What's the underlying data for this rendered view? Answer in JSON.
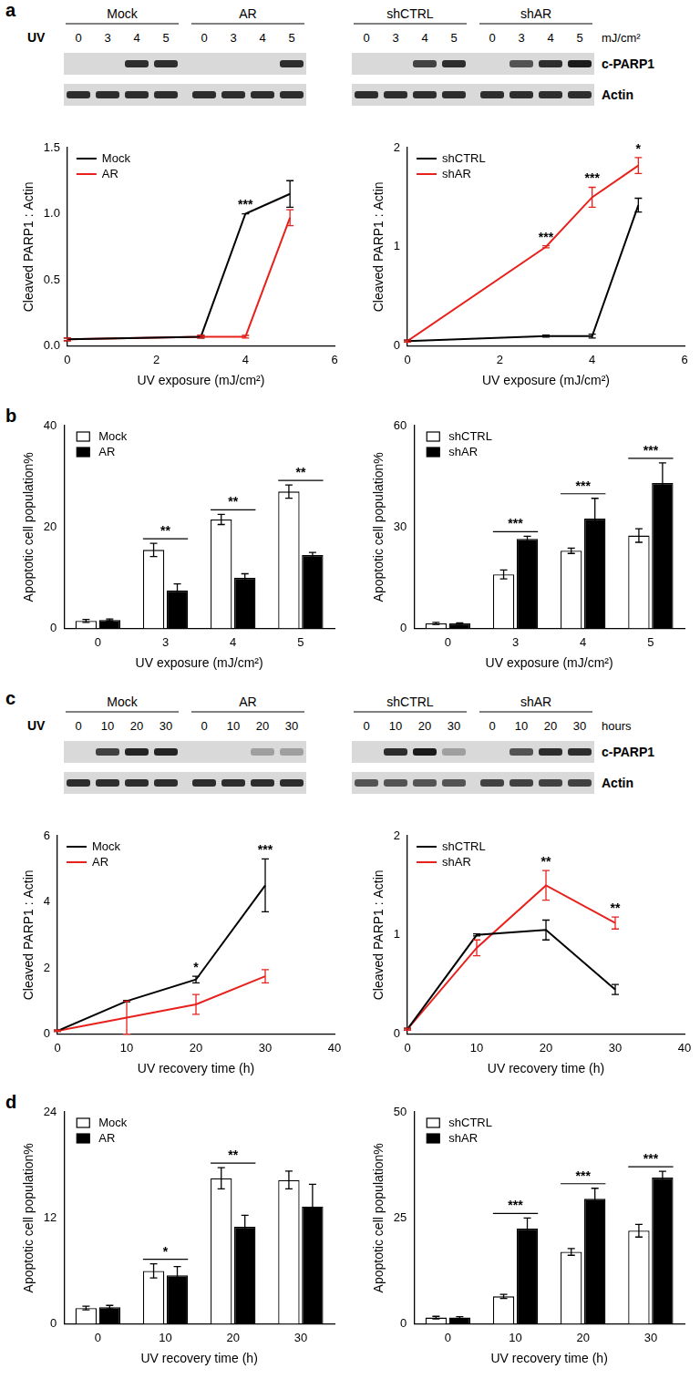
{
  "blots": [
    {
      "panel": "a",
      "row_label": "UV",
      "unit": "mJ/cm²",
      "groups": [
        {
          "name": "Mock",
          "lanes": [
            0,
            3,
            4,
            5
          ]
        },
        {
          "name": "AR",
          "lanes": [
            0,
            3,
            4,
            5
          ]
        },
        {
          "name": "shCTRL",
          "lanes": [
            0,
            3,
            4,
            5
          ]
        },
        {
          "name": "shAR",
          "lanes": [
            0,
            3,
            4,
            5
          ]
        }
      ],
      "rows": [
        {
          "name": "c-PARP1",
          "bands": [
            [
              0,
              0,
              0.9,
              0.9
            ],
            [
              0,
              0,
              0,
              0.9
            ],
            [
              0,
              0,
              0.8,
              0.9
            ],
            [
              0,
              0.7,
              0.9,
              1
            ]
          ]
        },
        {
          "name": "Actin",
          "bands": [
            [
              0.9,
              0.9,
              0.9,
              0.9
            ],
            [
              0.9,
              0.9,
              0.9,
              0.9
            ],
            [
              0.9,
              0.9,
              0.9,
              0.9
            ],
            [
              0.9,
              0.9,
              0.9,
              0.9
            ]
          ]
        }
      ]
    },
    {
      "panel": "c",
      "row_label": "UV",
      "unit": "hours",
      "groups": [
        {
          "name": "Mock",
          "lanes": [
            0,
            10,
            20,
            30
          ]
        },
        {
          "name": "AR",
          "lanes": [
            0,
            10,
            20,
            30
          ]
        },
        {
          "name": "shCTRL",
          "lanes": [
            0,
            10,
            20,
            30
          ]
        },
        {
          "name": "shAR",
          "lanes": [
            0,
            10,
            20,
            30
          ]
        }
      ],
      "rows": [
        {
          "name": "c-PARP1",
          "bands": [
            [
              0,
              0.8,
              0.95,
              0.95
            ],
            [
              0,
              0,
              0.3,
              0.3
            ],
            [
              0,
              0.9,
              1,
              0.3
            ],
            [
              0,
              0.7,
              0.9,
              0.9
            ]
          ]
        },
        {
          "name": "Actin",
          "bands": [
            [
              0.9,
              0.9,
              0.9,
              0.9
            ],
            [
              0.9,
              0.9,
              0.9,
              0.9
            ],
            [
              0.7,
              0.7,
              0.7,
              0.7
            ],
            [
              0.8,
              0.8,
              0.8,
              0.8
            ]
          ]
        }
      ]
    }
  ],
  "chart_data": [
    {
      "panel": "a",
      "type": "line",
      "x_label": "UV exposure (mJ/cm²)",
      "y_label": "Cleaved PARP1 : Actin",
      "x": [
        0,
        3,
        4,
        5
      ],
      "xlim": [
        0,
        6
      ],
      "xticks": [
        0,
        2,
        4,
        6
      ],
      "ylim": [
        0,
        1.5
      ],
      "yticks": [
        {
          "value": 0,
          "label": "0.0"
        },
        0.5,
        {
          "value": 1,
          "label": "1.0"
        },
        1.5
      ],
      "legend": "upper left",
      "series": [
        {
          "name": "Mock",
          "color": "#000000",
          "values": [
            0.05,
            0.07,
            1.0,
            1.15
          ],
          "errors": [
            0.01,
            0.01,
            0.0,
            0.1
          ]
        },
        {
          "name": "AR",
          "color": "#e8211c",
          "values": [
            0.05,
            0.07,
            0.07,
            0.97
          ],
          "errors": [
            0.01,
            0.01,
            0.01,
            0.06
          ]
        }
      ],
      "significance": [
        {
          "x": 4,
          "text": "***"
        }
      ]
    },
    {
      "panel": "a",
      "type": "line",
      "x_label": "UV exposure (mJ/cm²)",
      "y_label": "Cleaved PARP1 : Actin",
      "x": [
        0,
        3,
        4,
        5
      ],
      "xlim": [
        0,
        6
      ],
      "xticks": [
        0,
        2,
        4,
        6
      ],
      "ylim": [
        0,
        2
      ],
      "yticks": [
        0,
        1,
        2
      ],
      "legend": "upper left",
      "series": [
        {
          "name": "shCTRL",
          "color": "#000000",
          "values": [
            0.05,
            0.1,
            0.1,
            1.42
          ],
          "errors": [
            0.01,
            0.01,
            0.02,
            0.07
          ]
        },
        {
          "name": "shAR",
          "color": "#e8211c",
          "values": [
            0.05,
            1.0,
            1.5,
            1.82
          ],
          "errors": [
            0.01,
            0.01,
            0.1,
            0.08
          ]
        }
      ],
      "significance": [
        {
          "x": 3,
          "text": "***"
        },
        {
          "x": 4,
          "text": "***"
        },
        {
          "x": 5,
          "text": "*"
        }
      ]
    },
    {
      "panel": "b",
      "type": "bar",
      "x_label": "UV exposure (mJ/cm²)",
      "y_label": "Apoptotic cell population%",
      "categories": [
        "0",
        "3",
        "4",
        "5"
      ],
      "ylim": [
        0,
        40
      ],
      "yticks": [
        0,
        20,
        40
      ],
      "legend": "upper left",
      "series": [
        {
          "name": "Mock",
          "color": "#ffffff",
          "values": [
            1.5,
            15.5,
            21.5,
            27
          ],
          "errors": [
            0.3,
            1.3,
            1.0,
            1.3
          ]
        },
        {
          "name": "AR",
          "color": "#000000",
          "values": [
            1.7,
            7.5,
            10,
            14.5
          ],
          "errors": [
            0.2,
            1.3,
            0.8,
            0.5
          ]
        }
      ],
      "significance": [
        {
          "x": "3",
          "text": "**"
        },
        {
          "x": "4",
          "text": "**"
        },
        {
          "x": "5",
          "text": "**"
        }
      ]
    },
    {
      "panel": "b",
      "type": "bar",
      "x_label": "UV exposure (mJ/cm²)",
      "y_label": "Apoptotic cell population%",
      "categories": [
        "0",
        "3",
        "4",
        "5"
      ],
      "ylim": [
        0,
        60
      ],
      "yticks": [
        0,
        30,
        60
      ],
      "legend": "upper left",
      "series": [
        {
          "name": "shCTRL",
          "color": "#ffffff",
          "values": [
            1.5,
            16,
            23,
            27.5
          ],
          "errors": [
            0.3,
            1.3,
            0.8,
            2.0
          ]
        },
        {
          "name": "shAR",
          "color": "#000000",
          "values": [
            1.5,
            26.5,
            32.5,
            43
          ],
          "errors": [
            0.2,
            0.8,
            6.0,
            6.0
          ]
        }
      ],
      "significance": [
        {
          "x": "3",
          "text": "***"
        },
        {
          "x": "4",
          "text": "***"
        },
        {
          "x": "5",
          "text": "***"
        }
      ]
    },
    {
      "panel": "c",
      "type": "line",
      "x_label": "UV recovery time (h)",
      "y_label": "Cleaved PARP1 : Actin",
      "x": [
        0,
        10,
        20,
        30
      ],
      "xlim": [
        0,
        40
      ],
      "xticks": [
        0,
        10,
        20,
        30,
        40
      ],
      "ylim": [
        0,
        6
      ],
      "yticks": [
        0,
        2,
        4,
        6
      ],
      "legend": "upper left",
      "series": [
        {
          "name": "Mock",
          "color": "#000000",
          "values": [
            0.1,
            1.0,
            1.65,
            4.5
          ],
          "errors": [
            0.02,
            0.02,
            0.1,
            0.8
          ]
        },
        {
          "name": "AR",
          "color": "#e8211c",
          "values": [
            0.1,
            0.5,
            0.9,
            1.75
          ],
          "errors": [
            0.02,
            0.5,
            0.3,
            0.2
          ]
        }
      ],
      "significance": [
        {
          "x": 20,
          "text": "*"
        },
        {
          "x": 30,
          "text": "***"
        }
      ]
    },
    {
      "panel": "c",
      "type": "line",
      "x_label": "UV recovery time (h)",
      "y_label": "Cleaved PARP1 : Actin",
      "x": [
        0,
        10,
        20,
        30
      ],
      "xlim": [
        0,
        40
      ],
      "xticks": [
        0,
        10,
        20,
        30,
        40
      ],
      "ylim": [
        0,
        2
      ],
      "yticks": [
        0,
        1,
        2
      ],
      "legend": "upper left",
      "series": [
        {
          "name": "shCTRL",
          "color": "#000000",
          "values": [
            0.05,
            1.0,
            1.05,
            0.45
          ],
          "errors": [
            0.01,
            0.01,
            0.1,
            0.05
          ]
        },
        {
          "name": "shAR",
          "color": "#e8211c",
          "values": [
            0.05,
            0.87,
            1.5,
            1.12
          ],
          "errors": [
            0.01,
            0.08,
            0.15,
            0.06
          ]
        }
      ],
      "significance": [
        {
          "x": 20,
          "text": "**"
        },
        {
          "x": 30,
          "text": "**"
        }
      ]
    },
    {
      "panel": "d",
      "type": "bar",
      "x_label": "UV recovery time (h)",
      "y_label": "Apoptotic cell population%",
      "categories": [
        "0",
        "10",
        "20",
        "30"
      ],
      "ylim": [
        0,
        24
      ],
      "yticks": [
        0,
        12,
        24
      ],
      "legend": "upper left",
      "series": [
        {
          "name": "Mock",
          "color": "#ffffff",
          "values": [
            1.8,
            6,
            16.5,
            16.3
          ],
          "errors": [
            0.2,
            0.8,
            1.2,
            1.0
          ]
        },
        {
          "name": "AR",
          "color": "#000000",
          "values": [
            1.9,
            5.5,
            11,
            13.3
          ],
          "errors": [
            0.2,
            1.0,
            1.3,
            2.5
          ]
        }
      ],
      "significance": [
        {
          "x": "10",
          "text": "*"
        },
        {
          "x": "20",
          "text": "**"
        }
      ]
    },
    {
      "panel": "d",
      "type": "bar",
      "x_label": "UV recovery time (h)",
      "y_label": "Apoptotic cell population%",
      "categories": [
        "0",
        "10",
        "20",
        "30"
      ],
      "ylim": [
        0,
        50
      ],
      "yticks": [
        0,
        25,
        50
      ],
      "legend": "upper left",
      "series": [
        {
          "name": "shCTRL",
          "color": "#ffffff",
          "values": [
            1.5,
            6.5,
            17,
            22
          ],
          "errors": [
            0.3,
            0.5,
            0.8,
            1.5
          ]
        },
        {
          "name": "shAR",
          "color": "#000000",
          "values": [
            1.5,
            22.5,
            29.5,
            34.5
          ],
          "errors": [
            0.2,
            2.5,
            2.5,
            1.5
          ]
        }
      ],
      "significance": [
        {
          "x": "10",
          "text": "***"
        },
        {
          "x": "20",
          "text": "***"
        },
        {
          "x": "30",
          "text": "***"
        }
      ]
    }
  ]
}
